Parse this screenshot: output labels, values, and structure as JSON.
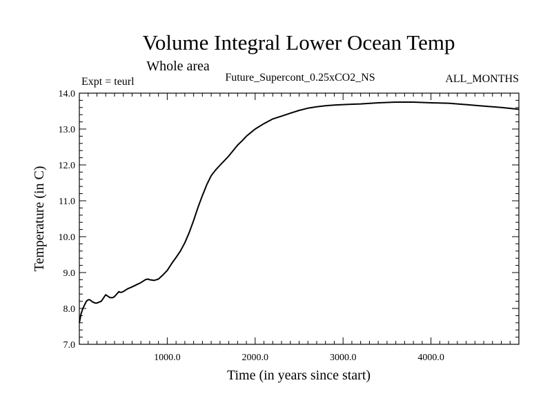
{
  "chart_data": {
    "type": "line",
    "title": "Volume Integral Lower Ocean Temp",
    "subtitle": "Whole area",
    "expt_label": "Expt = teurl",
    "run_label": "Future_Supercont_0.25xCO2_NS",
    "months_label": "ALL_MONTHS",
    "xlabel": "Time (in years since start)",
    "ylabel": "Temperature (in C)",
    "xlim": [
      0,
      5000
    ],
    "ylim": [
      7.0,
      14.0
    ],
    "x_ticks": [
      1000,
      2000,
      3000,
      4000
    ],
    "x_tick_labels": [
      "1000.0",
      "2000.0",
      "3000.0",
      "4000.0"
    ],
    "y_ticks": [
      7,
      8,
      9,
      10,
      11,
      12,
      13,
      14
    ],
    "y_tick_labels": [
      "7.0",
      "8.0",
      "9.0",
      "10.0",
      "11.0",
      "12.0",
      "13.0",
      "14.0"
    ],
    "grid": false,
    "line_color": "#000000",
    "series": [
      {
        "x": [
          0,
          20,
          40,
          60,
          80,
          100,
          120,
          150,
          180,
          200,
          250,
          300,
          350,
          380,
          400,
          450,
          460,
          480,
          500,
          550,
          600,
          650,
          700,
          750,
          780,
          800,
          850,
          900,
          950,
          1000,
          1050,
          1100,
          1150,
          1200,
          1250,
          1300,
          1350,
          1400,
          1450,
          1500,
          1550,
          1600,
          1650,
          1700,
          1750,
          1800,
          1850,
          1900,
          1950,
          2000,
          2100,
          2200,
          2300,
          2400,
          2500,
          2600,
          2700,
          2800,
          2900,
          3000,
          3200,
          3400,
          3600,
          3800,
          4000,
          4200,
          4400,
          4600,
          4800,
          5000
        ],
        "y": [
          7.6,
          7.85,
          8.0,
          8.1,
          8.2,
          8.24,
          8.24,
          8.18,
          8.15,
          8.15,
          8.2,
          8.38,
          8.3,
          8.3,
          8.33,
          8.47,
          8.45,
          8.45,
          8.47,
          8.55,
          8.6,
          8.66,
          8.72,
          8.8,
          8.82,
          8.8,
          8.78,
          8.82,
          8.93,
          9.06,
          9.25,
          9.42,
          9.6,
          9.83,
          10.12,
          10.45,
          10.82,
          11.15,
          11.45,
          11.7,
          11.86,
          11.99,
          12.12,
          12.25,
          12.4,
          12.55,
          12.67,
          12.8,
          12.9,
          13.0,
          13.15,
          13.28,
          13.36,
          13.44,
          13.52,
          13.58,
          13.62,
          13.65,
          13.67,
          13.68,
          13.7,
          13.73,
          13.75,
          13.75,
          13.73,
          13.72,
          13.68,
          13.64,
          13.6,
          13.55
        ]
      }
    ]
  }
}
